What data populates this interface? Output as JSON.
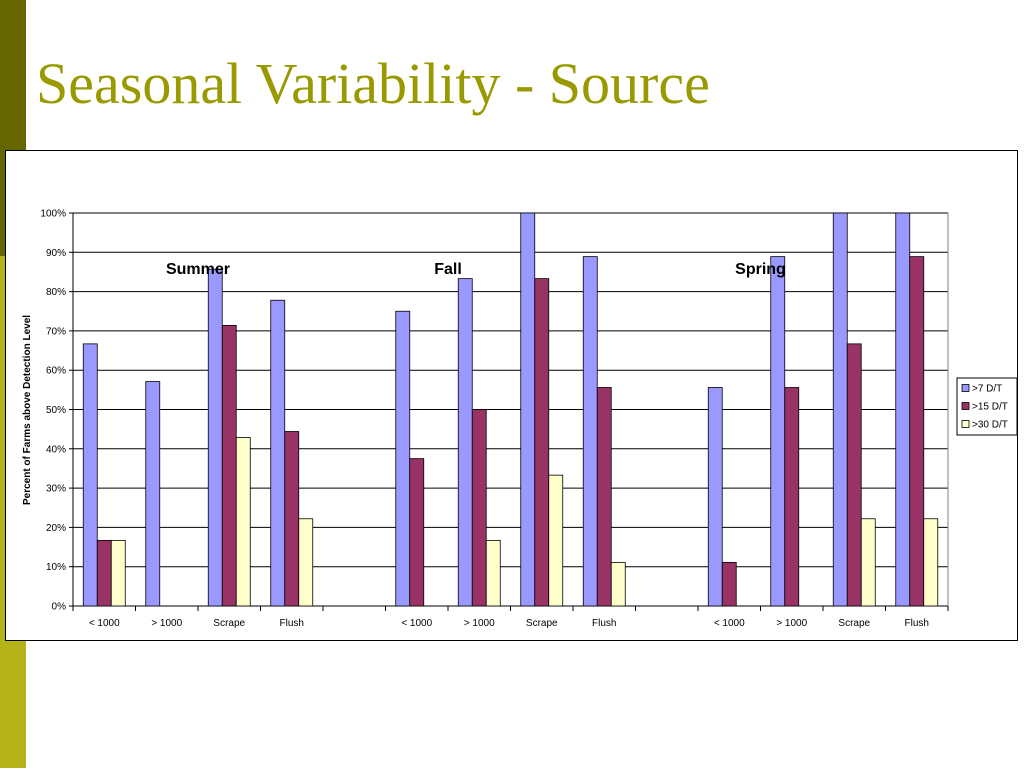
{
  "slide": {
    "title": "Seasonal Variability - Source"
  },
  "chart_data": {
    "type": "bar",
    "ylabel": "Percent of Farms above Detection Level",
    "xlabel": "",
    "ylim": [
      0,
      100
    ],
    "yticks": [
      "0%",
      "10%",
      "20%",
      "30%",
      "40%",
      "50%",
      "60%",
      "70%",
      "80%",
      "90%",
      "100%"
    ],
    "grid": true,
    "legend_position": "right",
    "groups": [
      {
        "label": "Summer",
        "categories": [
          "< 1000",
          "> 1000",
          "Scrape",
          "Flush"
        ]
      },
      {
        "label": "Fall",
        "categories": [
          "< 1000",
          "> 1000",
          "Scrape",
          "Flush"
        ]
      },
      {
        "label": "Spring",
        "categories": [
          "< 1000",
          "> 1000",
          "Scrape",
          "Flush"
        ]
      }
    ],
    "categories": [
      "< 1000",
      "> 1000",
      "Scrape",
      "Flush",
      "",
      "< 1000",
      "> 1000",
      "Scrape",
      "Flush",
      "",
      "< 1000",
      "> 1000",
      "Scrape",
      "Flush"
    ],
    "series": [
      {
        "name": ">7 D/T",
        "color": "#9999ff",
        "values": [
          66.7,
          57.1,
          85.7,
          77.8,
          null,
          75.0,
          83.3,
          100,
          88.9,
          null,
          55.6,
          88.9,
          100,
          100
        ]
      },
      {
        "name": ">15 D/T",
        "color": "#993366",
        "values": [
          16.7,
          0,
          71.4,
          44.4,
          null,
          37.5,
          50.0,
          83.3,
          55.6,
          null,
          11.1,
          55.6,
          66.7,
          88.9
        ]
      },
      {
        "name": ">30 D/T",
        "color": "#ffffcc",
        "values": [
          16.7,
          0,
          42.9,
          22.2,
          null,
          0,
          16.7,
          33.3,
          11.1,
          null,
          0,
          0,
          22.2,
          22.2
        ]
      }
    ]
  }
}
